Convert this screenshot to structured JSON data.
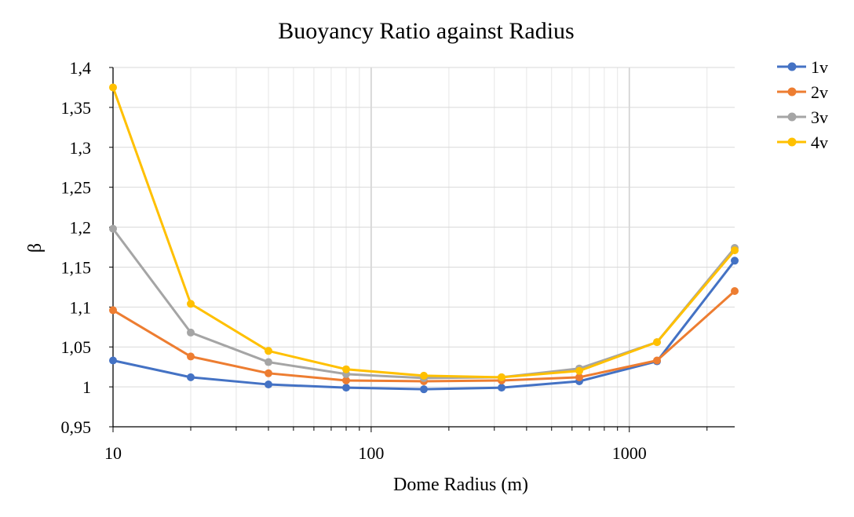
{
  "chart_data": {
    "type": "line",
    "title": "Buoyancy Ratio against Radius",
    "xlabel": "Dome Radius (m)",
    "ylabel": "β",
    "x_scale": "log",
    "xlim": [
      10,
      2560
    ],
    "ylim": [
      0.95,
      1.4
    ],
    "x_tick_labels": [
      {
        "value": 10,
        "label": "10"
      },
      {
        "value": 100,
        "label": "100"
      },
      {
        "value": 1000,
        "label": "1000"
      }
    ],
    "y_tick_labels": [
      {
        "value": 0.95,
        "label": "0,95"
      },
      {
        "value": 1.0,
        "label": "1"
      },
      {
        "value": 1.05,
        "label": "1,05"
      },
      {
        "value": 1.1,
        "label": "1,1"
      },
      {
        "value": 1.15,
        "label": "1,15"
      },
      {
        "value": 1.2,
        "label": "1,2"
      },
      {
        "value": 1.25,
        "label": "1,25"
      },
      {
        "value": 1.3,
        "label": "1,3"
      },
      {
        "value": 1.35,
        "label": "1,35"
      },
      {
        "value": 1.4,
        "label": "1,4"
      }
    ],
    "grid": true,
    "legend_position": "right",
    "x": [
      10,
      20,
      40,
      80,
      160,
      320,
      640,
      1280,
      2560
    ],
    "series": [
      {
        "name": "1v",
        "color": "#4472C4",
        "values": [
          1.033,
          1.012,
          1.003,
          0.999,
          0.997,
          0.999,
          1.007,
          1.032,
          1.158
        ]
      },
      {
        "name": "2v",
        "color": "#ED7D31",
        "values": [
          1.096,
          1.038,
          1.017,
          1.008,
          1.007,
          1.008,
          1.012,
          1.033,
          1.12
        ]
      },
      {
        "name": "3v",
        "color": "#A5A5A5",
        "values": [
          1.198,
          1.068,
          1.031,
          1.016,
          1.011,
          1.012,
          1.023,
          1.056,
          1.174
        ]
      },
      {
        "name": "4v",
        "color": "#FFC000",
        "values": [
          1.375,
          1.104,
          1.045,
          1.022,
          1.014,
          1.012,
          1.02,
          1.056,
          1.171
        ]
      }
    ]
  }
}
